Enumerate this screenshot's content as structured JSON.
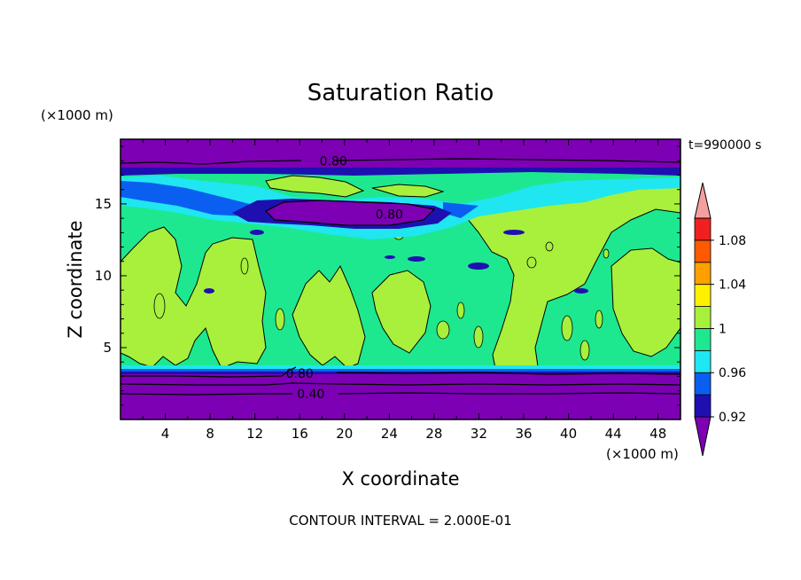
{
  "chart_data": {
    "type": "heatmap",
    "title": "Saturation Ratio",
    "xlabel": "X coordinate",
    "ylabel": "Z coordinate",
    "x_unit": "(×1000 m)",
    "y_unit": "(×1000 m)",
    "time_label": "t=990000 s",
    "footer": "CONTOUR INTERVAL = 2.000E-01",
    "xlim": [
      0,
      50
    ],
    "ylim": [
      0,
      19.5
    ],
    "x_ticks": [
      4,
      8,
      12,
      16,
      20,
      24,
      28,
      32,
      36,
      40,
      44,
      48
    ],
    "y_ticks": [
      5,
      10,
      15
    ],
    "colorbar": {
      "levels": [
        0.92,
        0.94,
        0.96,
        0.98,
        1.0,
        1.02,
        1.04,
        1.06,
        1.08,
        1.1
      ],
      "tick_labels": [
        "0.92",
        "0.96",
        "1",
        "1.04",
        "1.08"
      ],
      "colors": [
        "#7d00b4",
        "#1e10b0",
        "#0a5ff0",
        "#1fe6f0",
        "#1de890",
        "#a8f03c",
        "#fff000",
        "#ffa000",
        "#ff5a00",
        "#f02020",
        "#f5a0a0"
      ],
      "extend": "both"
    },
    "contour_labels": [
      {
        "x": 19,
        "z": 18.0,
        "text": "0.80"
      },
      {
        "x": 24,
        "z": 14.3,
        "text": "0.80"
      },
      {
        "x": 16,
        "z": 3.2,
        "text": "0.80"
      },
      {
        "x": 17,
        "z": 1.8,
        "text": "0.40"
      }
    ],
    "fields": {
      "bottom_dry_layer": {
        "z": [
          0,
          3.2
        ],
        "class": "below 0.92",
        "contours": [
          0.4,
          0.6,
          0.8
        ]
      },
      "top_dry_layer": {
        "z": [
          18.1,
          19.5
        ],
        "class": "below 0.92",
        "contours": [
          0.8
        ]
      },
      "dry_pocket": {
        "x": [
          10,
          28
        ],
        "z": [
          13.5,
          16
        ],
        "class": "below 0.92",
        "contour": 0.8
      },
      "saturated_mid": {
        "z": [
          3.4,
          14
        ],
        "class": "0.98–1.02 with 1.02–1.04 cells"
      }
    }
  }
}
